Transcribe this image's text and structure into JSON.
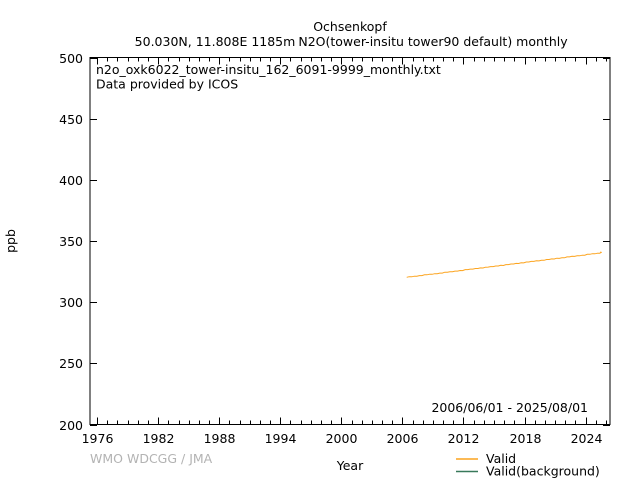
{
  "chart_data": {
    "type": "line",
    "station_name": "Ochsenkopf",
    "location_label": "50.030N, 11.808E 1185m",
    "parameter_label": "N2O(tower-insitu tower90 default) monthly",
    "annotation_line1": "n2o_oxk6022_tower-insitu_162_6091-9999_monthly.txt",
    "annotation_line2": "Data provided by ICOS",
    "date_range_label": "2006/06/01 - 2025/08/01",
    "watermark": "WMO WDCGG / JMA",
    "xlabel": "Year",
    "ylabel": "ppb",
    "xlim": [
      1975.3,
      2026.4
    ],
    "ylim": [
      200,
      500
    ],
    "xticks": [
      1976,
      1982,
      1988,
      1994,
      2000,
      2006,
      2012,
      2018,
      2024
    ],
    "yticks": [
      200,
      250,
      300,
      350,
      400,
      450,
      500
    ],
    "x_minor_tick_step": 1,
    "grid": false,
    "legend_position": "bottom-right-below-axis",
    "axis_color": "#000000",
    "series": [
      {
        "name": "Valid",
        "color": "#fca41f",
        "x": [
          2006.42,
          2006.67,
          2006.92,
          2007.17,
          2007.42,
          2007.67,
          2007.92,
          2008.17,
          2008.42,
          2008.67,
          2008.92,
          2009.17,
          2009.42,
          2009.67,
          2009.92,
          2010.17,
          2010.42,
          2010.67,
          2010.92,
          2011.17,
          2011.42,
          2011.67,
          2011.92,
          2012.17,
          2012.42,
          2012.67,
          2012.92,
          2013.17,
          2013.42,
          2013.67,
          2013.92,
          2014.17,
          2014.42,
          2014.67,
          2014.92,
          2015.17,
          2015.42,
          2015.67,
          2015.92,
          2016.17,
          2016.42,
          2016.67,
          2016.92,
          2017.17,
          2017.42,
          2017.67,
          2017.92,
          2018.17,
          2018.42,
          2018.67,
          2018.92,
          2019.17,
          2019.42,
          2019.67,
          2019.92,
          2020.17,
          2020.42,
          2020.67,
          2020.92,
          2021.17,
          2021.42,
          2021.67,
          2021.92,
          2022.17,
          2022.42,
          2022.67,
          2022.92,
          2023.17,
          2023.42,
          2023.67,
          2023.92,
          2024.17,
          2024.42,
          2024.67,
          2024.92,
          2025.17,
          2025.42,
          2025.5,
          2025.58
        ],
        "values": [
          320.3,
          320.8,
          320.7,
          321.2,
          321.2,
          321.7,
          321.7,
          322.4,
          322.4,
          322.9,
          322.8,
          323.3,
          323.3,
          323.8,
          323.8,
          324.5,
          324.5,
          324.9,
          324.9,
          325.4,
          325.4,
          325.9,
          325.8,
          326.6,
          326.6,
          327.0,
          327.0,
          327.5,
          327.5,
          328.0,
          327.9,
          328.6,
          328.7,
          329.1,
          329.1,
          329.6,
          329.6,
          330.1,
          330.0,
          330.7,
          330.7,
          331.2,
          331.2,
          331.7,
          331.6,
          332.2,
          332.1,
          332.8,
          332.8,
          333.3,
          333.3,
          333.8,
          333.7,
          334.2,
          334.2,
          334.9,
          334.9,
          335.4,
          335.3,
          335.9,
          335.8,
          336.3,
          336.3,
          337.0,
          337.0,
          337.5,
          337.4,
          337.9,
          337.9,
          338.4,
          338.4,
          339.1,
          339.1,
          339.6,
          339.5,
          340.0,
          340.0,
          340.9,
          340.4
        ]
      },
      {
        "name": "Valid(background)",
        "color": "#38795a",
        "x": [],
        "values": []
      }
    ]
  }
}
